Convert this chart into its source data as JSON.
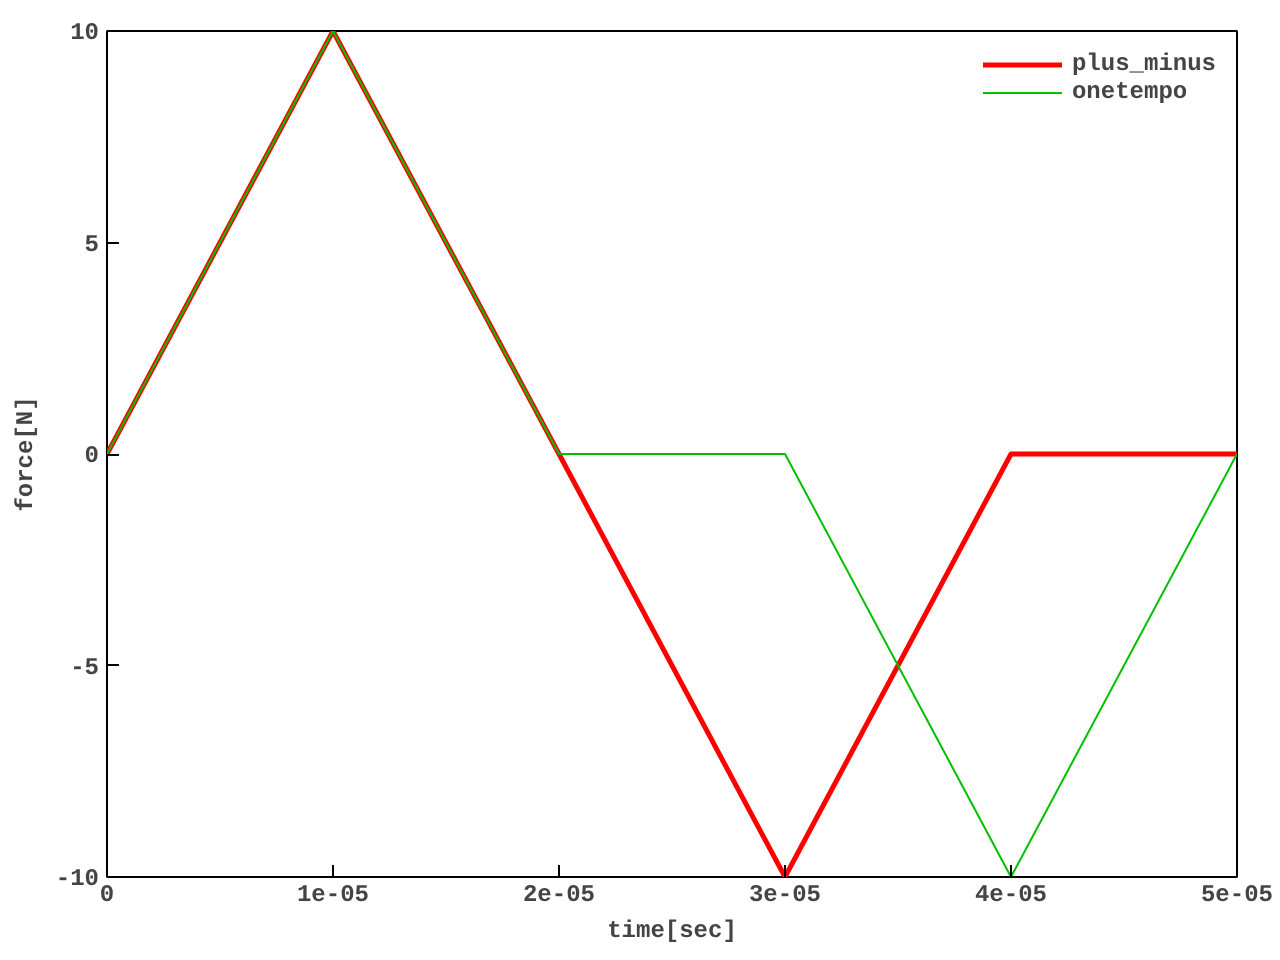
{
  "chart_data": {
    "type": "line",
    "xlabel": "time[sec]",
    "ylabel": "force[N]",
    "x": [
      0,
      1e-05,
      2e-05,
      3e-05,
      4e-05,
      5e-05
    ],
    "series": [
      {
        "name": "plus_minus",
        "color": "#ff0000",
        "values": [
          0,
          10,
          0,
          -10,
          0,
          0
        ]
      },
      {
        "name": "onetempo",
        "color": "#00c000",
        "values": [
          0,
          10,
          0,
          0,
          -10,
          0
        ]
      }
    ],
    "xlim": [
      0,
      5e-05
    ],
    "xticks": [
      0,
      {
        "value": 1e-05,
        "label": "1e-05"
      },
      {
        "value": 2e-05,
        "label": "2e-05"
      },
      {
        "value": 3e-05,
        "label": "3e-05"
      },
      {
        "value": 4e-05,
        "label": "4e-05"
      },
      {
        "value": 5e-05,
        "label": "5e-05"
      }
    ],
    "ylim": [
      -10,
      10
    ],
    "yticks": [
      -10,
      -5,
      0,
      5,
      10
    ],
    "grid": false,
    "legend": "top right",
    "marker": "none",
    "line_style": "solid"
  }
}
